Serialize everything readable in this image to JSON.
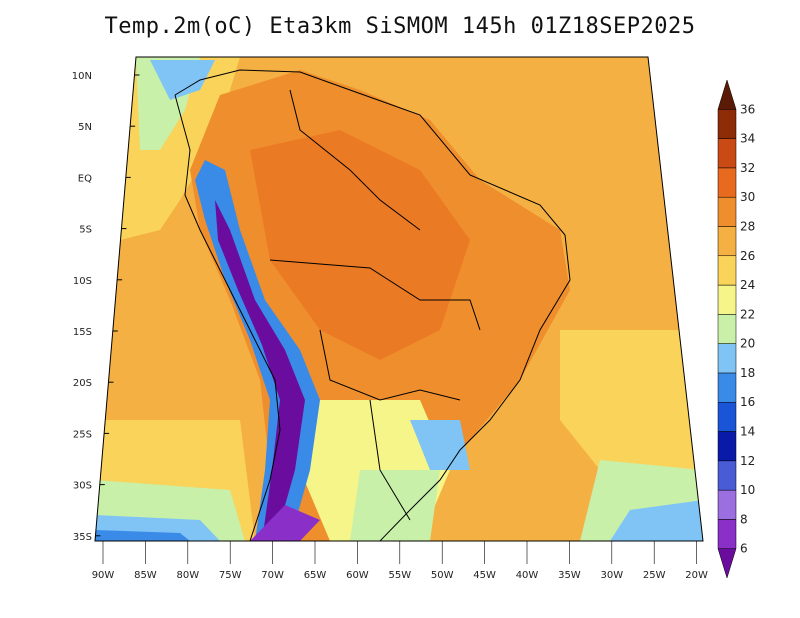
{
  "title": "Temp.2m(oC) Eta3km SiSMOM 145h 01Z18SEP2025",
  "map": {
    "variable": "2 m air temperature",
    "units": "oC",
    "lat_labels": [
      "10N",
      "5N",
      "EQ",
      "5S",
      "10S",
      "15S",
      "20S",
      "25S",
      "30S",
      "35S"
    ],
    "lon_labels": [
      "90W",
      "85W",
      "80W",
      "75W",
      "70W",
      "65W",
      "60W",
      "55W",
      "50W",
      "45W",
      "40W",
      "35W",
      "30W",
      "25W",
      "20W"
    ]
  },
  "colorbar": {
    "levels": [
      "6",
      "8",
      "10",
      "12",
      "14",
      "16",
      "18",
      "20",
      "22",
      "24",
      "26",
      "28",
      "30",
      "32",
      "34",
      "36"
    ],
    "colors": [
      "#6a0d9e",
      "#8b2fc9",
      "#9c6fe0",
      "#4a5bd6",
      "#0a1aa8",
      "#1a55d8",
      "#3a8be8",
      "#7fc4f5",
      "#c8f0a8",
      "#f6f58a",
      "#f9d35a",
      "#f5b043",
      "#ef8e2c",
      "#e86a1f",
      "#c94a14",
      "#8e2c08",
      "#5a1a05"
    ]
  }
}
